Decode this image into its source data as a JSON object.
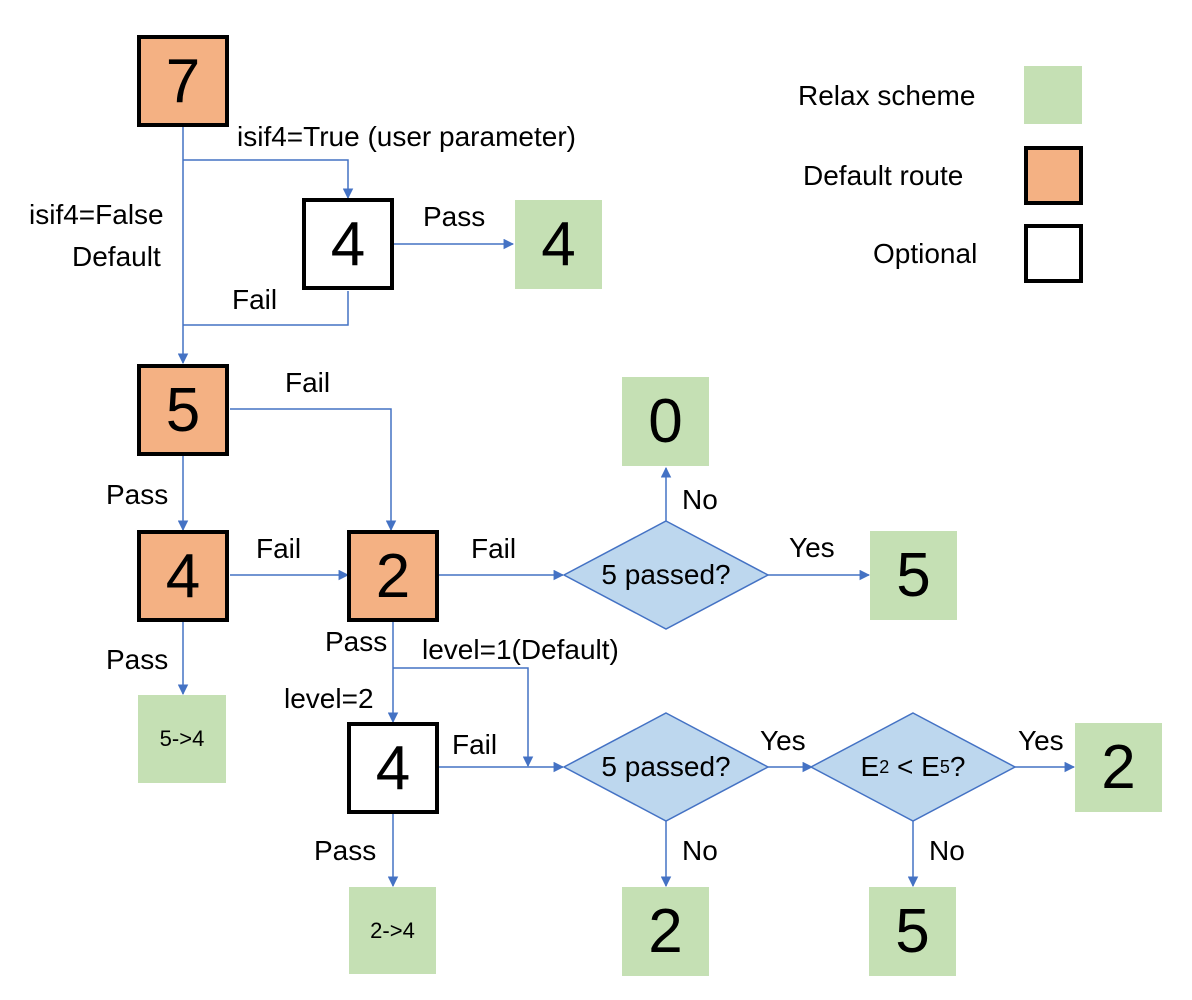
{
  "legend": {
    "relax_scheme": "Relax scheme",
    "default_route": "Default route",
    "optional": "Optional",
    "colors": {
      "relax_scheme": "#c5e0b4",
      "default_route": "#f4b183",
      "optional": "#ffffff"
    }
  },
  "nodes": {
    "n7": "7",
    "n4_optional_top": "4",
    "n4_result_top": "4",
    "n5": "5",
    "n4_default": "4",
    "n2": "2",
    "n0": "0",
    "n5_result": "5",
    "n5_to_4": "5->4",
    "n4_optional_bottom": "4",
    "n2_to_4": "2->4",
    "n2_result_right": "2",
    "n2_result_bottom": "2",
    "n5_result_bottom": "5"
  },
  "decisions": {
    "d1": "5 passed?",
    "d2": "5 passed?",
    "d3": {
      "e_left": "E",
      "sub_left": "2",
      "op": " < ",
      "e_right": "E",
      "sub_right": "5",
      "q": "?"
    }
  },
  "edge_labels": {
    "isif4_true": "isif4=True (user parameter)",
    "isif4_false": "isif4=False",
    "default": "Default",
    "pass_top": "Pass",
    "fail_top": "Fail",
    "fail_5": "Fail",
    "pass_5": "Pass",
    "fail_4": "Fail",
    "pass_4": "Pass",
    "fail_2": "Fail",
    "no_d1": "No",
    "yes_d1": "Yes",
    "pass_2": "Pass",
    "level_1": "level=1(Default)",
    "level_2": "level=2",
    "fail_4b": "Fail",
    "yes_d2": "Yes",
    "yes_d3": "Yes",
    "pass_4b": "Pass",
    "no_d2": "No",
    "no_d3": "No"
  }
}
